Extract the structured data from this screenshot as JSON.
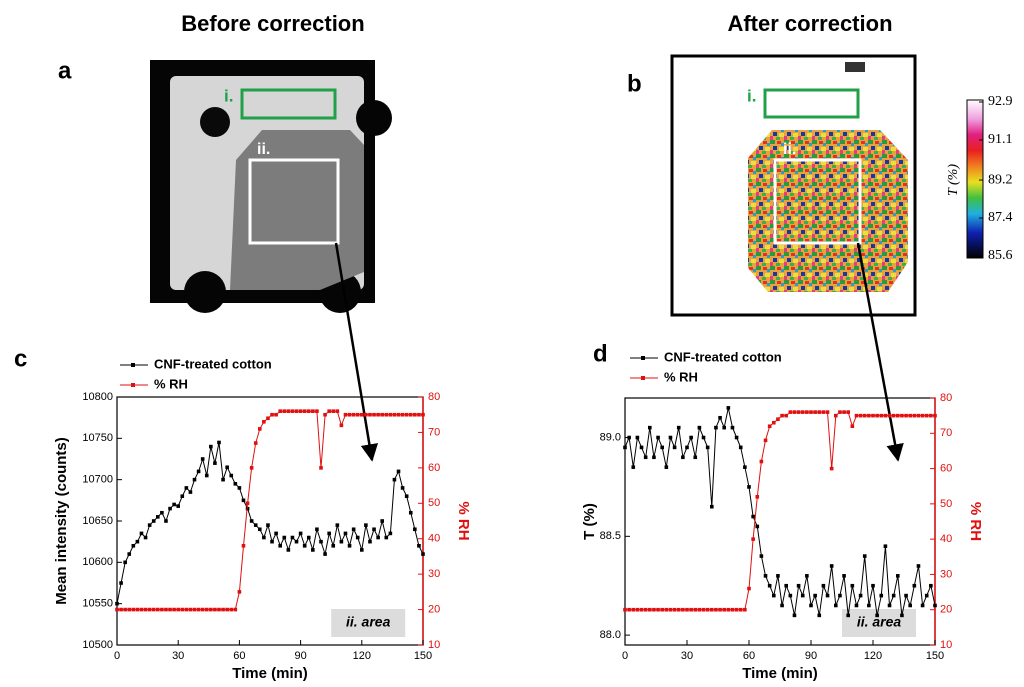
{
  "figure": {
    "titles": [
      "Before correction",
      "After correction"
    ],
    "panels": [
      "a",
      "b",
      "c",
      "d"
    ],
    "regions": [
      "i.",
      "ii."
    ]
  },
  "colorbar": {
    "label": "T (%)",
    "ticks": [
      92.9,
      91.1,
      89.2,
      87.4,
      85.6
    ]
  },
  "chart_data": [
    {
      "type": "line",
      "x_label": "Time (min)",
      "y_label": "Mean intensity (counts)",
      "y2_label": "% RH",
      "annotation": "ii. area",
      "x": [
        0,
        2,
        4,
        6,
        8,
        10,
        12,
        14,
        16,
        18,
        20,
        22,
        24,
        26,
        28,
        30,
        32,
        34,
        36,
        38,
        40,
        42,
        44,
        46,
        48,
        50,
        52,
        54,
        56,
        58,
        60,
        62,
        64,
        66,
        68,
        70,
        72,
        74,
        76,
        78,
        80,
        82,
        84,
        86,
        88,
        90,
        92,
        94,
        96,
        98,
        100,
        102,
        104,
        106,
        108,
        110,
        112,
        114,
        116,
        118,
        120,
        122,
        124,
        126,
        128,
        130,
        132,
        134,
        136,
        138,
        140,
        142,
        144,
        146,
        148,
        150
      ],
      "xlim": [
        0,
        150
      ],
      "xticks": [
        0,
        30,
        60,
        90,
        120,
        150
      ],
      "ylim": [
        10500,
        10800
      ],
      "yticks": [
        10500,
        10550,
        10600,
        10650,
        10700,
        10750,
        10800
      ],
      "y2lim": [
        10,
        80
      ],
      "y2ticks": [
        10,
        20,
        30,
        40,
        50,
        60,
        70,
        80
      ],
      "series": [
        {
          "name": "CNF-treated cotton",
          "color": "#000000",
          "values": [
            10550,
            10575,
            10600,
            10610,
            10620,
            10625,
            10635,
            10630,
            10645,
            10650,
            10655,
            10660,
            10650,
            10665,
            10670,
            10668,
            10680,
            10690,
            10685,
            10700,
            10710,
            10725,
            10705,
            10740,
            10720,
            10745,
            10700,
            10715,
            10705,
            10695,
            10690,
            10675,
            10665,
            10650,
            10645,
            10640,
            10630,
            10645,
            10625,
            10635,
            10620,
            10630,
            10615,
            10630,
            10625,
            10635,
            10620,
            10630,
            10615,
            10640,
            10625,
            10610,
            10635,
            10620,
            10645,
            10625,
            10635,
            10620,
            10640,
            10630,
            10615,
            10645,
            10625,
            10640,
            10630,
            10650,
            10630,
            10635,
            10700,
            10710,
            10690,
            10680,
            10660,
            10640,
            10620,
            10610
          ]
        },
        {
          "name": "% RH",
          "color": "#e01010",
          "axis": "y2",
          "values": [
            20,
            20,
            20,
            20,
            20,
            20,
            20,
            20,
            20,
            20,
            20,
            20,
            20,
            20,
            20,
            20,
            20,
            20,
            20,
            20,
            20,
            20,
            20,
            20,
            20,
            20,
            20,
            20,
            20,
            20,
            25,
            38,
            50,
            60,
            67,
            71,
            73,
            74,
            75,
            75,
            76,
            76,
            76,
            76,
            76,
            76,
            76,
            76,
            76,
            76,
            60,
            75,
            76,
            76,
            76,
            72,
            75,
            75,
            75,
            75,
            75,
            75,
            75,
            75,
            75,
            75,
            75,
            75,
            75,
            75,
            75,
            75,
            75,
            75,
            75,
            75
          ]
        }
      ]
    },
    {
      "type": "line",
      "x_label": "Time (min)",
      "y_label": "T (%)",
      "y2_label": "% RH",
      "annotation": "ii. area",
      "x": [
        0,
        2,
        4,
        6,
        8,
        10,
        12,
        14,
        16,
        18,
        20,
        22,
        24,
        26,
        28,
        30,
        32,
        34,
        36,
        38,
        40,
        42,
        44,
        46,
        48,
        50,
        52,
        54,
        56,
        58,
        60,
        62,
        64,
        66,
        68,
        70,
        72,
        74,
        76,
        78,
        80,
        82,
        84,
        86,
        88,
        90,
        92,
        94,
        96,
        98,
        100,
        102,
        104,
        106,
        108,
        110,
        112,
        114,
        116,
        118,
        120,
        122,
        124,
        126,
        128,
        130,
        132,
        134,
        136,
        138,
        140,
        142,
        144,
        146,
        148,
        150
      ],
      "xlim": [
        0,
        150
      ],
      "xticks": [
        0,
        30,
        60,
        90,
        120,
        150
      ],
      "ylim": [
        87.95,
        89.2
      ],
      "yticks": [
        {
          "value": 88,
          "label": "88.0"
        },
        88.5,
        {
          "value": 89,
          "label": "89.0"
        }
      ],
      "y2lim": [
        10,
        80
      ],
      "y2ticks": [
        10,
        20,
        30,
        40,
        50,
        60,
        70,
        80
      ],
      "series": [
        {
          "name": "CNF-treated cotton",
          "color": "#000000",
          "values": [
            88.95,
            89.0,
            88.85,
            89.0,
            88.95,
            88.9,
            89.05,
            88.9,
            89.0,
            88.95,
            88.85,
            89.0,
            88.95,
            89.05,
            88.9,
            88.95,
            89.0,
            88.9,
            89.05,
            89.0,
            88.95,
            88.65,
            89.05,
            89.1,
            89.05,
            89.15,
            89.05,
            89.0,
            88.95,
            88.85,
            88.75,
            88.6,
            88.55,
            88.4,
            88.3,
            88.25,
            88.2,
            88.3,
            88.15,
            88.25,
            88.2,
            88.1,
            88.25,
            88.2,
            88.3,
            88.15,
            88.2,
            88.1,
            88.25,
            88.2,
            88.35,
            88.15,
            88.2,
            88.3,
            88.1,
            88.25,
            88.15,
            88.2,
            88.4,
            88.15,
            88.25,
            88.1,
            88.2,
            88.45,
            88.15,
            88.2,
            88.3,
            88.1,
            88.2,
            88.15,
            88.25,
            88.35,
            88.15,
            88.2,
            88.25,
            88.15
          ]
        },
        {
          "name": "% RH",
          "color": "#e01010",
          "axis": "y2",
          "values": [
            20,
            20,
            20,
            20,
            20,
            20,
            20,
            20,
            20,
            20,
            20,
            20,
            20,
            20,
            20,
            20,
            20,
            20,
            20,
            20,
            20,
            20,
            20,
            20,
            20,
            20,
            20,
            20,
            20,
            20,
            26,
            40,
            52,
            62,
            68,
            72,
            73,
            74,
            75,
            75,
            76,
            76,
            76,
            76,
            76,
            76,
            76,
            76,
            76,
            76,
            60,
            75,
            76,
            76,
            76,
            72,
            75,
            75,
            75,
            75,
            75,
            75,
            75,
            75,
            75,
            75,
            75,
            75,
            75,
            75,
            75,
            75,
            75,
            75,
            75,
            75
          ]
        }
      ]
    }
  ]
}
